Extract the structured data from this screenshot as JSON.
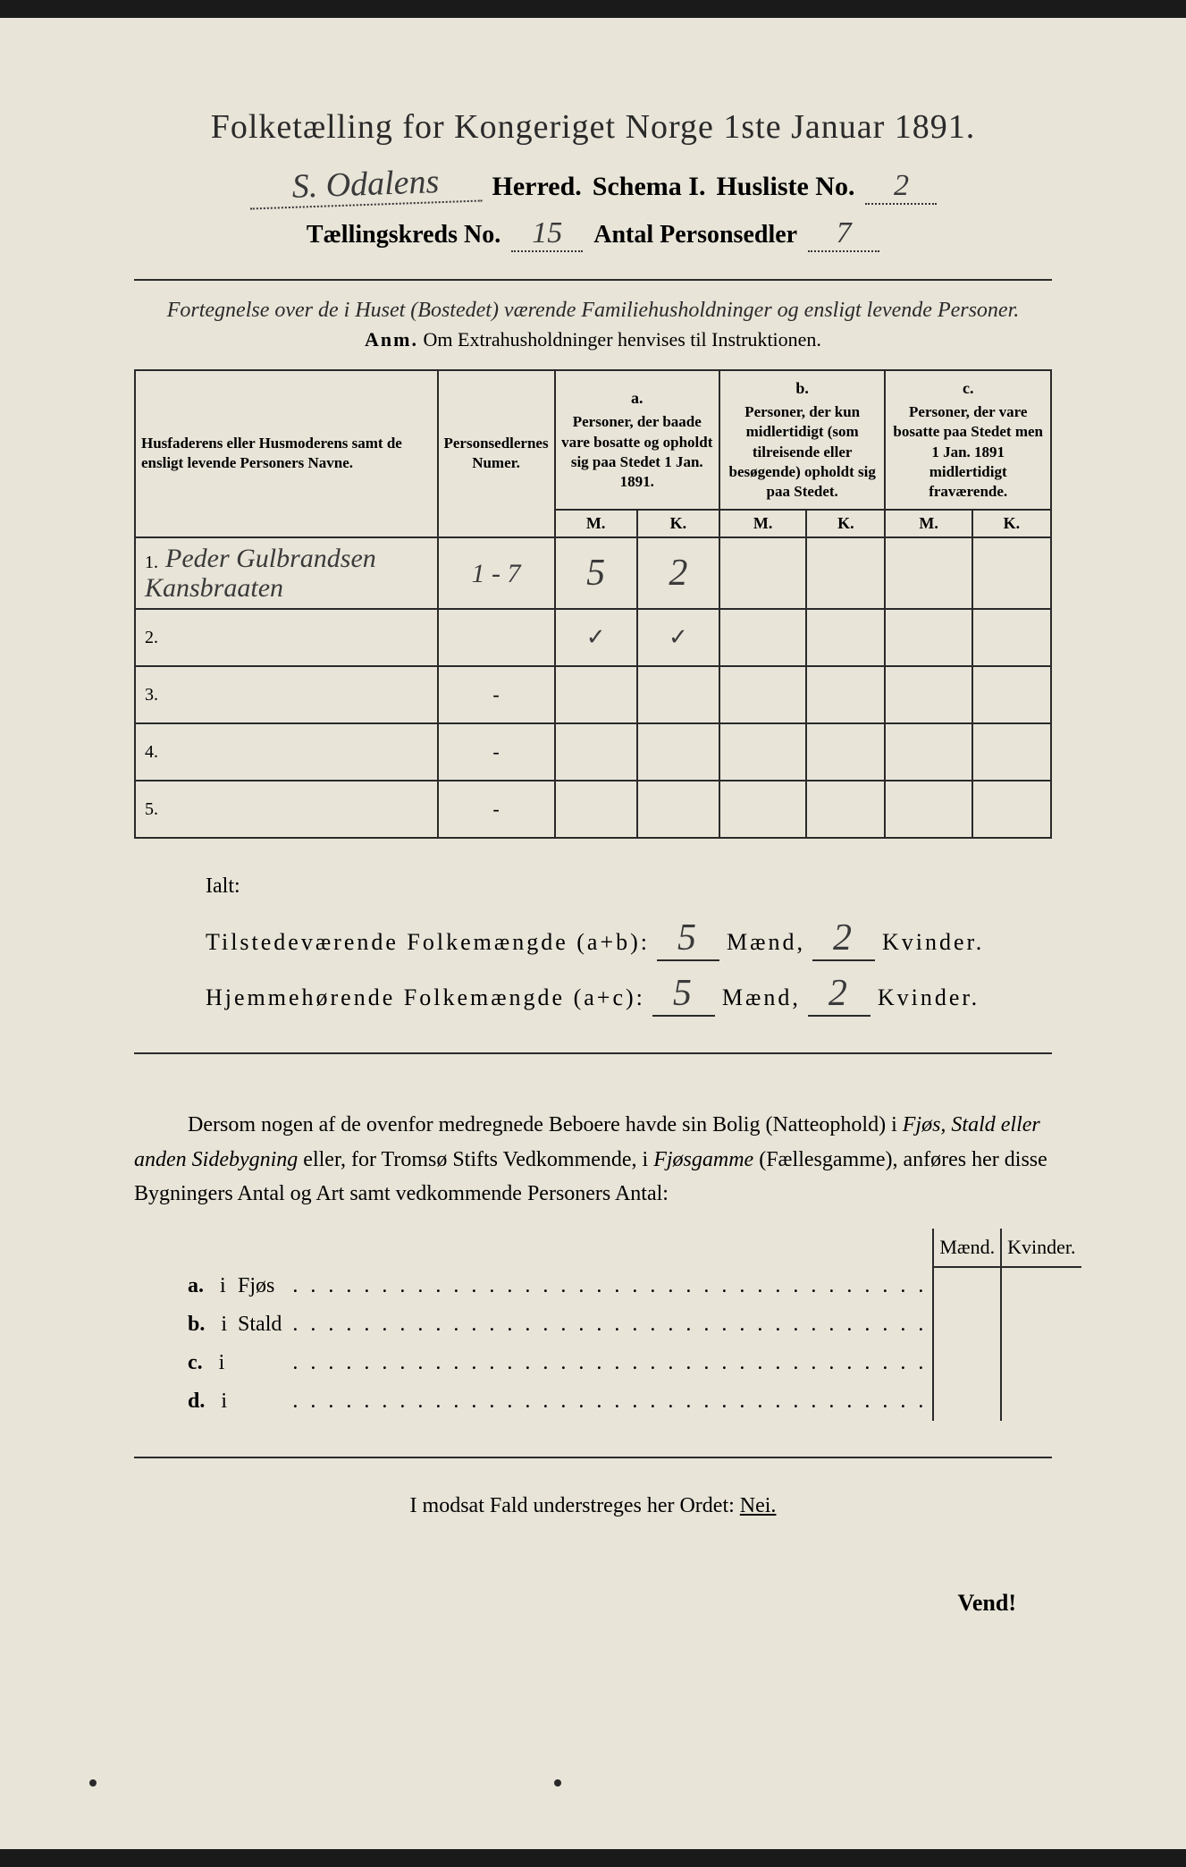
{
  "title": "Folketælling for Kongeriget Norge 1ste Januar 1891.",
  "header": {
    "herred_value": "S. Odalens",
    "herred_label": "Herred.",
    "schema_label": "Schema I.",
    "husliste_label": "Husliste No.",
    "husliste_value": "2",
    "kreds_label": "Tællingskreds No.",
    "kreds_value": "15",
    "personsedler_label": "Antal Personsedler",
    "personsedler_value": "7"
  },
  "subtitle": "Fortegnelse over de i Huset (Bostedet) værende Familiehusholdninger og ensligt levende Personer.",
  "anm_label": "Anm.",
  "anm_text": "Om Extrahusholdninger henvises til Instruktionen.",
  "table": {
    "col_names_header": "Husfaderens eller Husmoderens samt de ensligt levende Personers Navne.",
    "col_numer_header": "Personsedlernes Numer.",
    "col_a_label": "a.",
    "col_a_text": "Personer, der baade vare bosatte og opholdt sig paa Stedet 1 Jan. 1891.",
    "col_b_label": "b.",
    "col_b_text": "Personer, der kun midlertidigt (som tilreisende eller besøgende) opholdt sig paa Stedet.",
    "col_c_label": "c.",
    "col_c_text": "Personer, der vare bosatte paa Stedet men 1 Jan. 1891 midlertidigt fraværende.",
    "m_label": "M.",
    "k_label": "K.",
    "rows": [
      {
        "num": "1.",
        "name": "Peder Gulbrandsen Kansbraaten",
        "sedler": "1 - 7",
        "a_m": "5",
        "a_k": "2",
        "b_m": "",
        "b_k": "",
        "c_m": "",
        "c_k": ""
      },
      {
        "num": "2.",
        "name": "",
        "sedler": "",
        "a_m": "✓",
        "a_k": "✓",
        "b_m": "",
        "b_k": "",
        "c_m": "",
        "c_k": ""
      },
      {
        "num": "3.",
        "name": "",
        "sedler": "-",
        "a_m": "",
        "a_k": "",
        "b_m": "",
        "b_k": "",
        "c_m": "",
        "c_k": ""
      },
      {
        "num": "4.",
        "name": "",
        "sedler": "-",
        "a_m": "",
        "a_k": "",
        "b_m": "",
        "b_k": "",
        "c_m": "",
        "c_k": ""
      },
      {
        "num": "5.",
        "name": "",
        "sedler": "-",
        "a_m": "",
        "a_k": "",
        "b_m": "",
        "b_k": "",
        "c_m": "",
        "c_k": ""
      }
    ]
  },
  "ialt_label": "Ialt:",
  "totals": {
    "tilstede_label": "Tilstedeværende Folkemængde (a+b):",
    "tilstede_m": "5",
    "tilstede_k": "2",
    "hjemme_label": "Hjemmehørende Folkemængde (a+c):",
    "hjemme_m": "5",
    "hjemme_k": "2",
    "maend": "Mænd,",
    "kvinder": "Kvinder."
  },
  "paragraph": {
    "p1": "Dersom nogen af de ovenfor medregnede Beboere havde sin Bolig (Natteophold) i ",
    "p2": "Fjøs, Stald eller anden Sidebygning",
    "p3": " eller, for Tromsø Stifts Vedkommende, i ",
    "p4": "Fjøsgamme",
    "p5": " (Fællesgamme), anføres her disse Bygningers Antal og Art samt vedkommende Personers Antal:"
  },
  "buildings": {
    "maend_label": "Mænd.",
    "kvinder_label": "Kvinder.",
    "rows": [
      {
        "label": "a.",
        "i": "i",
        "type": "Fjøs"
      },
      {
        "label": "b.",
        "i": "i",
        "type": "Stald"
      },
      {
        "label": "c.",
        "i": "i",
        "type": ""
      },
      {
        "label": "d.",
        "i": "i",
        "type": ""
      }
    ]
  },
  "footer": {
    "text_pre": "I modsat Fald understreges her Ordet: ",
    "nei": "Nei.",
    "vend": "Vend!"
  }
}
